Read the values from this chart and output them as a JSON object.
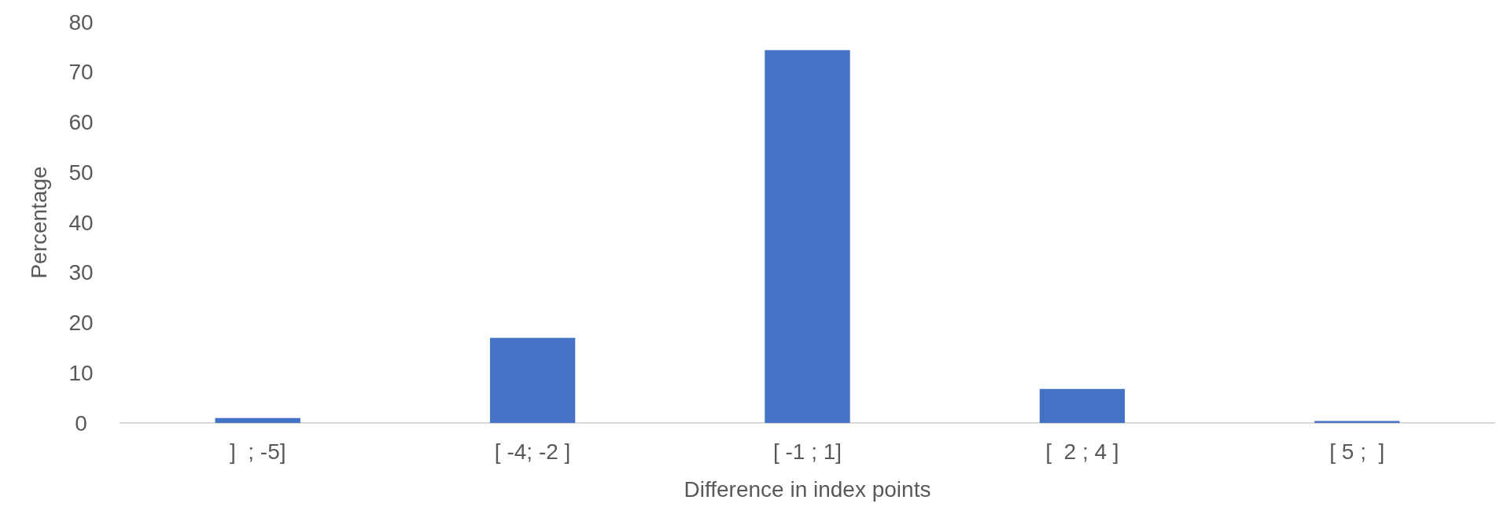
{
  "chart_data": {
    "type": "bar",
    "xlabel": "Difference in index points",
    "ylabel": "Percentage",
    "categories": [
      "]  ; -5]",
      "[ -4; -2 ]",
      "[ -1 ; 1]",
      "[  2 ; 4 ]",
      "[ 5 ;  ]"
    ],
    "values": [
      1.0,
      17,
      74.4,
      6.8,
      0.4
    ],
    "color": "#4472c4",
    "ylim": [
      0,
      80
    ],
    "yticks": [
      0,
      10,
      20,
      30,
      40,
      50,
      60,
      70,
      80
    ],
    "grid": false
  }
}
